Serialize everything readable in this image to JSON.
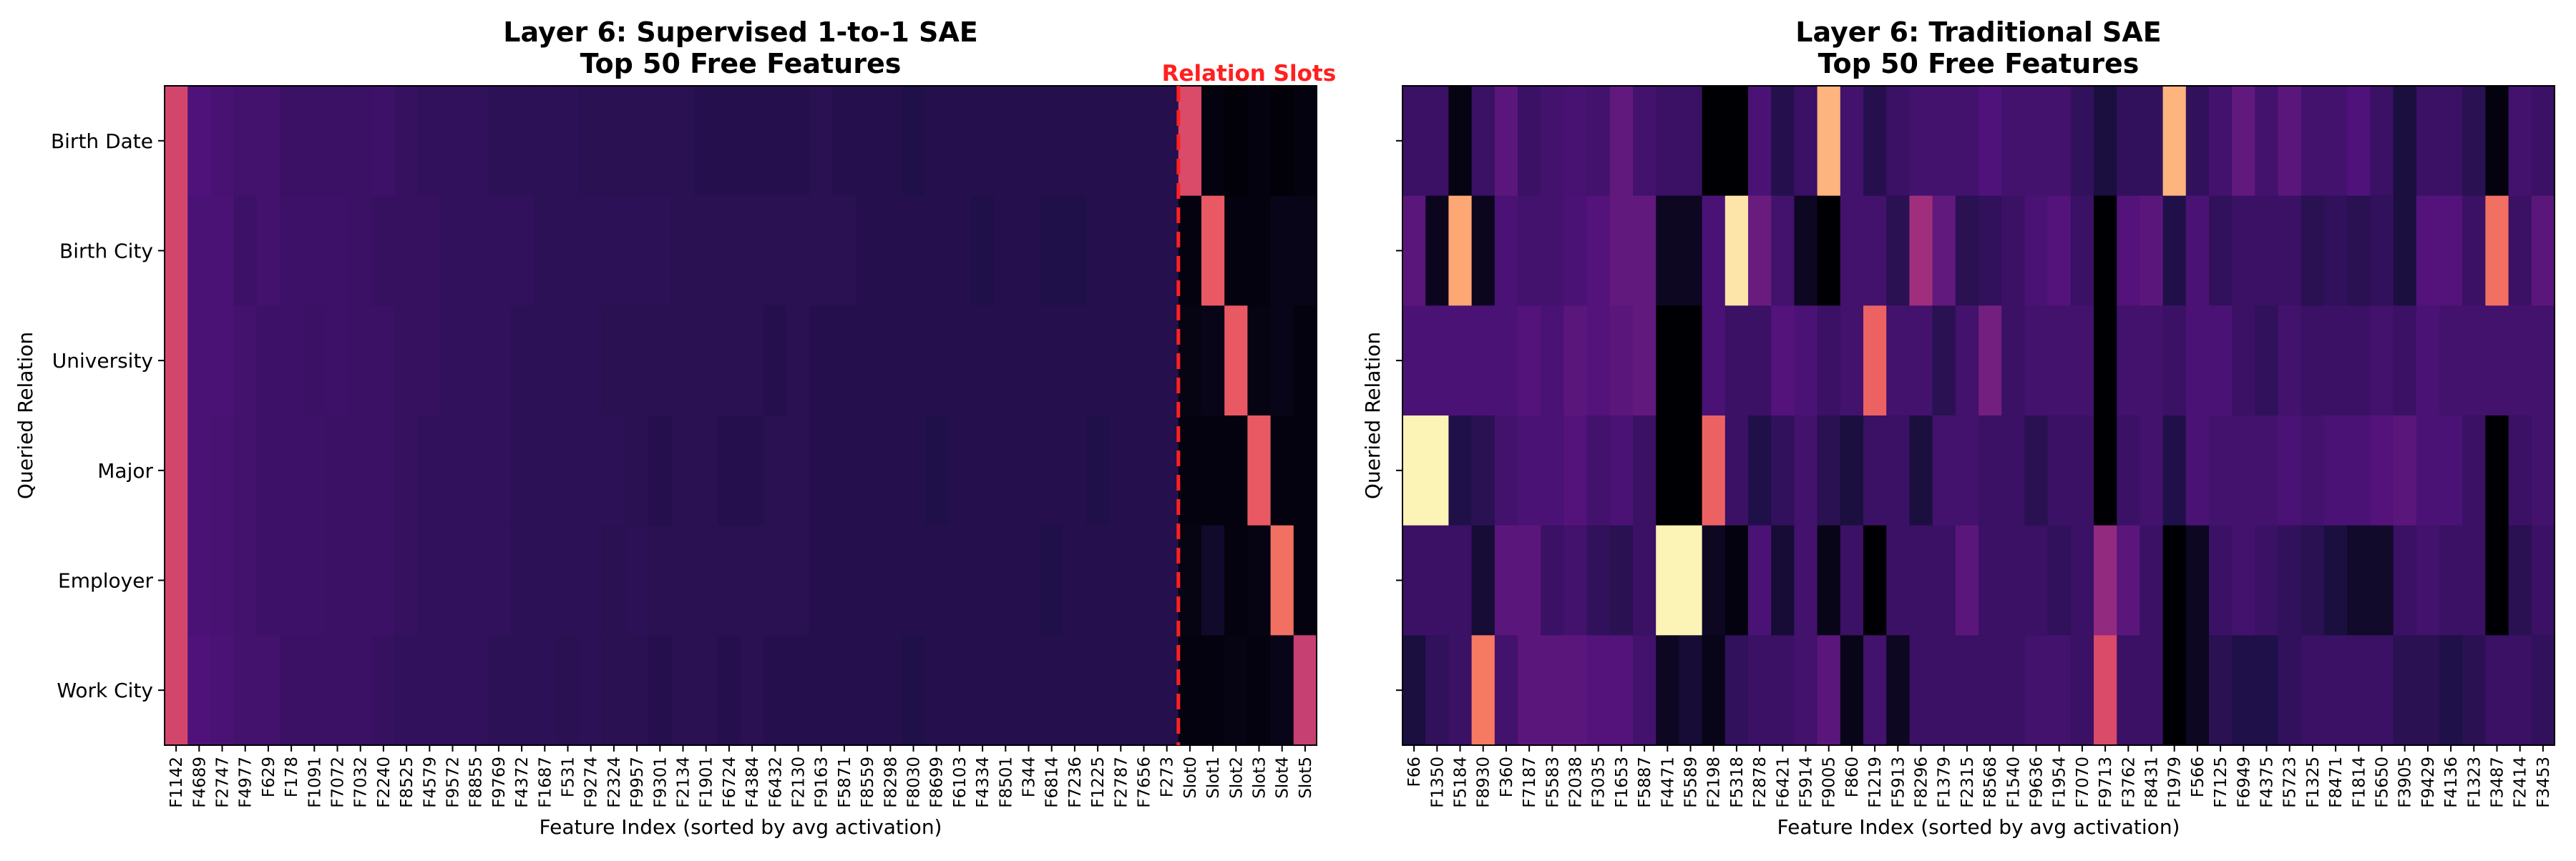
{
  "chart_data": [
    {
      "type": "heatmap",
      "title": [
        "Layer 6: Supervised 1-to-1 SAE",
        "Top 50 Free Features"
      ],
      "xlabel": "Feature Index (sorted by avg activation)",
      "ylabel": "Queried Relation",
      "colormap": "magma",
      "value_range": [
        0,
        1
      ],
      "rows": [
        "Birth Date",
        "Birth City",
        "University",
        "Major",
        "Employer",
        "Work City"
      ],
      "columns": [
        "F1142",
        "F4689",
        "F2747",
        "F4977",
        "F629",
        "F178",
        "F1091",
        "F7072",
        "F7032",
        "F2240",
        "F8525",
        "F4579",
        "F9572",
        "F8855",
        "F9769",
        "F4372",
        "F1687",
        "F531",
        "F9274",
        "F2324",
        "F9957",
        "F9301",
        "F2134",
        "F1901",
        "F6724",
        "F4384",
        "F6432",
        "F2130",
        "F9163",
        "F5871",
        "F8559",
        "F8298",
        "F8030",
        "F8699",
        "F6103",
        "F4334",
        "F8501",
        "F344",
        "F6814",
        "F7236",
        "F1225",
        "F2787",
        "F7656",
        "F273",
        "Slot0",
        "Slot1",
        "Slot2",
        "Slot3",
        "Slot4",
        "Slot5"
      ],
      "annotation": {
        "text": "Relation Slots",
        "color": "#ff2020",
        "divider_after_column": "F273"
      },
      "values": [
        [
          0.58,
          0.25,
          0.23,
          0.22,
          0.22,
          0.2,
          0.2,
          0.2,
          0.2,
          0.21,
          0.19,
          0.18,
          0.18,
          0.18,
          0.17,
          0.17,
          0.17,
          0.17,
          0.16,
          0.16,
          0.16,
          0.16,
          0.16,
          0.15,
          0.15,
          0.15,
          0.15,
          0.15,
          0.16,
          0.15,
          0.15,
          0.15,
          0.14,
          0.15,
          0.15,
          0.15,
          0.15,
          0.15,
          0.15,
          0.15,
          0.15,
          0.15,
          0.15,
          0.15,
          0.6,
          0.02,
          0.01,
          0.02,
          0.01,
          0.02
        ],
        [
          0.58,
          0.24,
          0.24,
          0.21,
          0.22,
          0.21,
          0.21,
          0.21,
          0.2,
          0.19,
          0.19,
          0.19,
          0.18,
          0.18,
          0.18,
          0.18,
          0.17,
          0.17,
          0.17,
          0.17,
          0.17,
          0.17,
          0.16,
          0.16,
          0.16,
          0.16,
          0.16,
          0.16,
          0.16,
          0.16,
          0.15,
          0.15,
          0.15,
          0.15,
          0.15,
          0.14,
          0.15,
          0.15,
          0.14,
          0.14,
          0.15,
          0.15,
          0.15,
          0.15,
          0.02,
          0.65,
          0.02,
          0.02,
          0.04,
          0.04
        ],
        [
          0.58,
          0.24,
          0.24,
          0.22,
          0.21,
          0.21,
          0.2,
          0.21,
          0.2,
          0.2,
          0.19,
          0.19,
          0.18,
          0.18,
          0.18,
          0.17,
          0.17,
          0.17,
          0.17,
          0.16,
          0.16,
          0.16,
          0.16,
          0.16,
          0.16,
          0.16,
          0.15,
          0.16,
          0.15,
          0.15,
          0.15,
          0.15,
          0.15,
          0.15,
          0.15,
          0.15,
          0.15,
          0.15,
          0.15,
          0.15,
          0.15,
          0.15,
          0.15,
          0.15,
          0.03,
          0.04,
          0.65,
          0.03,
          0.04,
          0.02
        ],
        [
          0.58,
          0.24,
          0.23,
          0.22,
          0.21,
          0.21,
          0.21,
          0.2,
          0.2,
          0.2,
          0.19,
          0.18,
          0.18,
          0.18,
          0.18,
          0.17,
          0.17,
          0.17,
          0.17,
          0.17,
          0.16,
          0.15,
          0.16,
          0.16,
          0.15,
          0.15,
          0.16,
          0.16,
          0.15,
          0.15,
          0.15,
          0.15,
          0.15,
          0.14,
          0.15,
          0.15,
          0.15,
          0.15,
          0.15,
          0.15,
          0.14,
          0.15,
          0.15,
          0.15,
          0.02,
          0.02,
          0.02,
          0.65,
          0.02,
          0.02
        ],
        [
          0.58,
          0.24,
          0.23,
          0.22,
          0.21,
          0.21,
          0.21,
          0.2,
          0.2,
          0.2,
          0.19,
          0.18,
          0.18,
          0.18,
          0.18,
          0.17,
          0.17,
          0.17,
          0.17,
          0.16,
          0.17,
          0.16,
          0.16,
          0.16,
          0.16,
          0.16,
          0.16,
          0.16,
          0.15,
          0.15,
          0.15,
          0.15,
          0.15,
          0.15,
          0.15,
          0.15,
          0.15,
          0.15,
          0.14,
          0.15,
          0.15,
          0.15,
          0.15,
          0.15,
          0.03,
          0.08,
          0.02,
          0.03,
          0.7,
          0.02
        ],
        [
          0.58,
          0.25,
          0.24,
          0.22,
          0.22,
          0.2,
          0.2,
          0.2,
          0.2,
          0.19,
          0.18,
          0.18,
          0.18,
          0.18,
          0.17,
          0.17,
          0.17,
          0.16,
          0.17,
          0.16,
          0.16,
          0.15,
          0.16,
          0.16,
          0.15,
          0.16,
          0.15,
          0.15,
          0.15,
          0.15,
          0.15,
          0.15,
          0.14,
          0.15,
          0.15,
          0.15,
          0.15,
          0.15,
          0.15,
          0.15,
          0.15,
          0.15,
          0.15,
          0.15,
          0.02,
          0.02,
          0.03,
          0.02,
          0.04,
          0.55
        ]
      ]
    },
    {
      "type": "heatmap",
      "title": [
        "Layer 6: Traditional SAE",
        "Top 50 Free Features"
      ],
      "xlabel": "Feature Index (sorted by avg activation)",
      "ylabel": "Queried Relation",
      "colormap": "magma",
      "value_range": [
        0,
        1
      ],
      "rows": [
        "Birth Date",
        "Birth City",
        "University",
        "Major",
        "Employer",
        "Work City"
      ],
      "columns": [
        "F66",
        "F1350",
        "F5184",
        "F8930",
        "F360",
        "F7187",
        "F5583",
        "F2038",
        "F3035",
        "F1653",
        "F5887",
        "F4471",
        "F5589",
        "F2198",
        "F5318",
        "F2878",
        "F6421",
        "F5914",
        "F9005",
        "F860",
        "F1219",
        "F5913",
        "F8296",
        "F1379",
        "F2315",
        "F8568",
        "F1540",
        "F9636",
        "F1954",
        "F7070",
        "F9713",
        "F3762",
        "F8431",
        "F1979",
        "F566",
        "F7125",
        "F6949",
        "F4375",
        "F5723",
        "F1325",
        "F8471",
        "F1814",
        "F5650",
        "F3905",
        "F9429",
        "F4136",
        "F1323",
        "F3487",
        "F2414",
        "F3453"
      ],
      "values": [
        [
          0.2,
          0.2,
          0.03,
          0.2,
          0.28,
          0.2,
          0.22,
          0.23,
          0.22,
          0.3,
          0.22,
          0.2,
          0.2,
          0.0,
          0.0,
          0.24,
          0.15,
          0.2,
          0.85,
          0.22,
          0.15,
          0.2,
          0.22,
          0.22,
          0.22,
          0.25,
          0.22,
          0.22,
          0.22,
          0.18,
          0.12,
          0.18,
          0.18,
          0.85,
          0.18,
          0.22,
          0.3,
          0.22,
          0.28,
          0.22,
          0.22,
          0.25,
          0.2,
          0.12,
          0.2,
          0.2,
          0.16,
          0.02,
          0.22,
          0.2
        ],
        [
          0.28,
          0.05,
          0.82,
          0.05,
          0.24,
          0.22,
          0.22,
          0.24,
          0.26,
          0.3,
          0.3,
          0.06,
          0.06,
          0.24,
          0.95,
          0.32,
          0.22,
          0.06,
          0.0,
          0.22,
          0.22,
          0.16,
          0.45,
          0.3,
          0.16,
          0.18,
          0.2,
          0.24,
          0.26,
          0.2,
          0.0,
          0.26,
          0.28,
          0.14,
          0.24,
          0.18,
          0.2,
          0.2,
          0.2,
          0.16,
          0.18,
          0.16,
          0.18,
          0.12,
          0.26,
          0.26,
          0.2,
          0.7,
          0.2,
          0.28
        ],
        [
          0.24,
          0.24,
          0.24,
          0.24,
          0.24,
          0.26,
          0.24,
          0.28,
          0.26,
          0.28,
          0.3,
          0.0,
          0.0,
          0.24,
          0.2,
          0.2,
          0.26,
          0.24,
          0.2,
          0.22,
          0.67,
          0.22,
          0.22,
          0.16,
          0.22,
          0.34,
          0.2,
          0.22,
          0.22,
          0.22,
          0.0,
          0.22,
          0.22,
          0.2,
          0.24,
          0.24,
          0.2,
          0.18,
          0.22,
          0.2,
          0.2,
          0.2,
          0.22,
          0.2,
          0.24,
          0.22,
          0.22,
          0.22,
          0.22,
          0.22
        ],
        [
          0.98,
          0.98,
          0.14,
          0.16,
          0.22,
          0.24,
          0.24,
          0.26,
          0.22,
          0.24,
          0.2,
          0.0,
          0.0,
          0.67,
          0.2,
          0.14,
          0.18,
          0.22,
          0.16,
          0.12,
          0.2,
          0.2,
          0.12,
          0.22,
          0.22,
          0.2,
          0.2,
          0.16,
          0.2,
          0.2,
          0.0,
          0.2,
          0.22,
          0.14,
          0.24,
          0.22,
          0.22,
          0.22,
          0.24,
          0.22,
          0.24,
          0.24,
          0.26,
          0.28,
          0.24,
          0.24,
          0.2,
          0.0,
          0.2,
          0.22
        ],
        [
          0.2,
          0.2,
          0.2,
          0.1,
          0.28,
          0.28,
          0.2,
          0.22,
          0.18,
          0.16,
          0.2,
          0.98,
          0.98,
          0.06,
          0.02,
          0.24,
          0.1,
          0.22,
          0.04,
          0.2,
          0.0,
          0.2,
          0.2,
          0.2,
          0.28,
          0.2,
          0.2,
          0.2,
          0.18,
          0.2,
          0.42,
          0.28,
          0.2,
          0.0,
          0.06,
          0.2,
          0.22,
          0.2,
          0.18,
          0.16,
          0.12,
          0.08,
          0.08,
          0.2,
          0.22,
          0.2,
          0.2,
          0.0,
          0.16,
          0.2
        ],
        [
          0.12,
          0.18,
          0.2,
          0.72,
          0.22,
          0.28,
          0.28,
          0.28,
          0.26,
          0.26,
          0.22,
          0.06,
          0.1,
          0.04,
          0.18,
          0.2,
          0.2,
          0.22,
          0.28,
          0.04,
          0.22,
          0.06,
          0.2,
          0.2,
          0.2,
          0.2,
          0.2,
          0.22,
          0.22,
          0.2,
          0.6,
          0.2,
          0.2,
          0.0,
          0.06,
          0.16,
          0.14,
          0.14,
          0.18,
          0.2,
          0.2,
          0.2,
          0.2,
          0.16,
          0.16,
          0.14,
          0.16,
          0.2,
          0.2,
          0.18
        ]
      ]
    }
  ]
}
